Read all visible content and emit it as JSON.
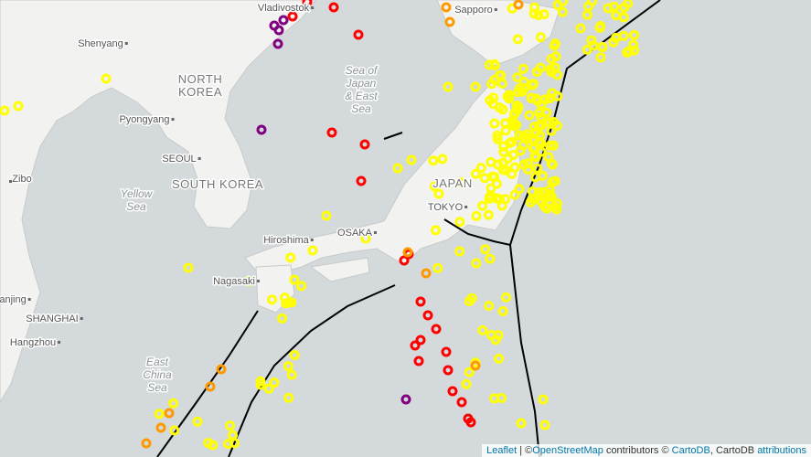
{
  "map": {
    "labels": [
      {
        "name": "Vladivostok"
      },
      {
        "name": "Sapporo"
      },
      {
        "name": "Shenyang"
      },
      {
        "name": [
          "NORTH",
          "KOREA"
        ]
      },
      {
        "name": [
          "Sea of",
          "Japan",
          "& East",
          "Sea"
        ]
      },
      {
        "name": "Pyongyang"
      },
      {
        "name": "SEOUL"
      },
      {
        "name": "SOUTH KOREA"
      },
      {
        "name": "Zibo"
      },
      {
        "name": [
          "Yellow",
          "Sea"
        ]
      },
      {
        "name": "JAPAN"
      },
      {
        "name": "TOKYO"
      },
      {
        "name": "Hiroshima"
      },
      {
        "name": "OSAKA"
      },
      {
        "name": "Nagasaki"
      },
      {
        "name": "anjing"
      },
      {
        "name": "SHANGHAI"
      },
      {
        "name": "Hangzhou"
      },
      {
        "name": [
          "East",
          "China",
          "Sea"
        ]
      }
    ]
  },
  "attribution": {
    "leaflet": "Leaflet",
    "sep": "| ©",
    "osm": "OpenStreetMap",
    "contrib": "contributors ©",
    "cartodb": "CartoDB",
    "mid": ", CartoDB",
    "attributions": "attributions"
  }
}
